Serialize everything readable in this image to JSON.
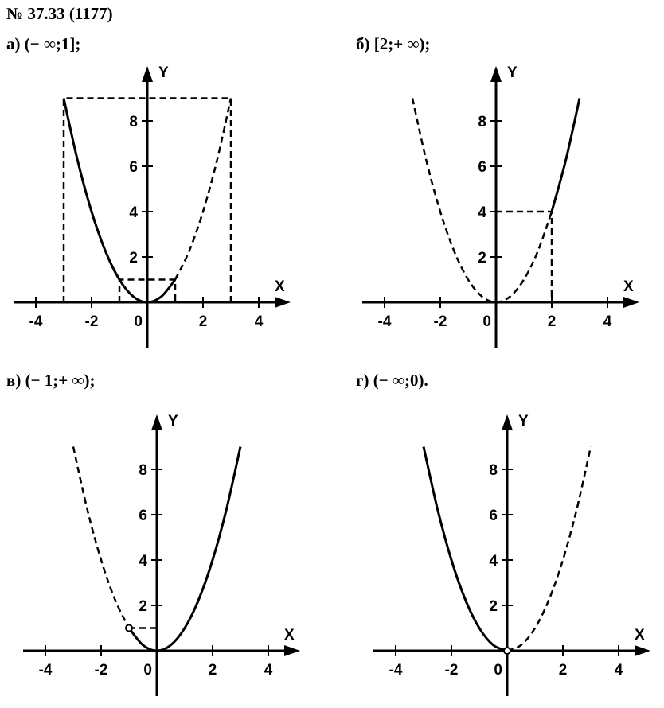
{
  "heading": "№ 37.33 (1177)",
  "chart_data": [
    {
      "type": "line",
      "title": "а) (− ∞;1];",
      "xlabel": "X",
      "ylabel": "Y",
      "color": "#000000",
      "xlim": [
        -4.8,
        4.8
      ],
      "ylim": [
        -2,
        10
      ],
      "xticks": [
        -4,
        -2,
        0,
        2,
        4
      ],
      "yticks": [
        2,
        4,
        6,
        8
      ],
      "series": [
        {
          "x": [
            -3,
            -2.5,
            -2,
            -1.5,
            -1,
            -0.5,
            0,
            0.5,
            1
          ],
          "values": [
            9,
            6.25,
            4,
            2.25,
            1,
            0.25,
            0,
            0.25,
            1
          ],
          "dashed": false,
          "smooth": true
        },
        {
          "x": [
            1,
            1.5,
            2,
            2.5,
            3
          ],
          "values": [
            1,
            2.25,
            4,
            6.25,
            9
          ],
          "dashed": true,
          "smooth": true
        },
        {
          "x": [
            -3,
            -3,
            3,
            3
          ],
          "values": [
            0,
            9,
            9,
            0
          ],
          "dashed": true,
          "smooth": false
        },
        {
          "x": [
            -1,
            -1,
            1,
            1
          ],
          "values": [
            0,
            1,
            1,
            0
          ],
          "dashed": true,
          "smooth": false
        }
      ]
    },
    {
      "type": "line",
      "title": "б) [2;+ ∞);",
      "xlabel": "X",
      "ylabel": "Y",
      "color": "#000000",
      "xlim": [
        -4.8,
        4.8
      ],
      "ylim": [
        -2,
        10
      ],
      "xticks": [
        -4,
        -2,
        0,
        2,
        4
      ],
      "yticks": [
        2,
        4,
        6,
        8
      ],
      "series": [
        {
          "x": [
            -3,
            -2.5,
            -2,
            -1.5,
            -1,
            -0.5,
            0,
            0.5,
            1,
            1.5,
            2
          ],
          "values": [
            9,
            6.25,
            4,
            2.25,
            1,
            0.25,
            0,
            0.25,
            1,
            2.25,
            4
          ],
          "dashed": true,
          "smooth": true
        },
        {
          "x": [
            2,
            2.5,
            3
          ],
          "values": [
            4,
            6.25,
            9
          ],
          "dashed": false,
          "smooth": true
        },
        {
          "x": [
            0,
            2,
            2
          ],
          "values": [
            4,
            4,
            0
          ],
          "dashed": true,
          "smooth": false
        }
      ]
    },
    {
      "type": "line",
      "title": "в) (− 1;+ ∞);",
      "xlabel": "X",
      "ylabel": "Y",
      "color": "#000000",
      "xlim": [
        -4.8,
        4.8
      ],
      "ylim": [
        -2,
        10
      ],
      "xticks": [
        -4,
        -2,
        0,
        2,
        4
      ],
      "yticks": [
        2,
        4,
        6,
        8
      ],
      "series": [
        {
          "x": [
            -3,
            -2.5,
            -2,
            -1.5,
            -1
          ],
          "values": [
            9,
            6.25,
            4,
            2.25,
            1
          ],
          "dashed": true,
          "smooth": true
        },
        {
          "x": [
            -1,
            -0.5,
            0,
            0.5,
            1,
            1.5,
            2,
            2.5,
            3
          ],
          "values": [
            1,
            0.25,
            0,
            0.25,
            1,
            2.25,
            4,
            6.25,
            9
          ],
          "dashed": false,
          "smooth": true
        },
        {
          "x": [
            -1,
            0
          ],
          "values": [
            1,
            1
          ],
          "dashed": true,
          "smooth": false
        },
        {
          "x": [
            -1
          ],
          "values": [
            1
          ],
          "marker": "open-circle"
        }
      ]
    },
    {
      "type": "line",
      "title": "г) (− ∞;0).",
      "xlabel": "X",
      "ylabel": "Y",
      "color": "#000000",
      "xlim": [
        -4.8,
        4.8
      ],
      "ylim": [
        -2,
        10
      ],
      "xticks": [
        -4,
        -2,
        0,
        2,
        4
      ],
      "yticks": [
        2,
        4,
        6,
        8
      ],
      "series": [
        {
          "x": [
            -3,
            -2.5,
            -2,
            -1.5,
            -1,
            -0.5,
            0
          ],
          "values": [
            9,
            6.25,
            4,
            2.25,
            1,
            0.25,
            0
          ],
          "dashed": false,
          "smooth": true
        },
        {
          "x": [
            0,
            0.5,
            1,
            1.5,
            2,
            2.5,
            3
          ],
          "values": [
            0,
            0.25,
            1,
            2.25,
            4,
            6.25,
            9
          ],
          "dashed": true,
          "smooth": true
        },
        {
          "x": [
            0
          ],
          "values": [
            0
          ],
          "marker": "open-circle"
        }
      ]
    }
  ]
}
